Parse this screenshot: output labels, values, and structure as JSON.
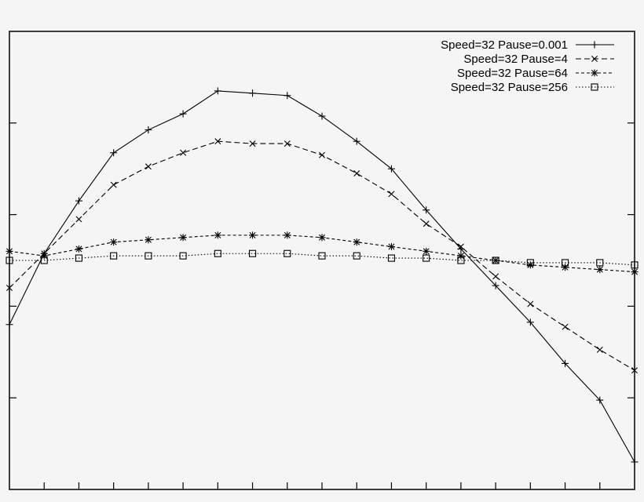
{
  "chart_data": {
    "type": "line",
    "title": "",
    "xlabel": "",
    "ylabel": "",
    "xlim": [
      0,
      18
    ],
    "ylim": [
      -1.0,
      1.0
    ],
    "grid": false,
    "legend_position": "top-right",
    "x": [
      0,
      1,
      2,
      3,
      4,
      5,
      6,
      7,
      8,
      9,
      10,
      11,
      12,
      13,
      14,
      15,
      16,
      17,
      18
    ],
    "series": [
      {
        "name": "Speed=32  Pause=0.001",
        "line_style": "solid",
        "marker": "plus",
        "values": [
          -0.28,
          0.03,
          0.26,
          0.47,
          0.57,
          0.64,
          0.74,
          0.73,
          0.72,
          0.63,
          0.52,
          0.4,
          0.22,
          0.05,
          -0.11,
          -0.27,
          -0.45,
          -0.61,
          -0.88
        ]
      },
      {
        "name": "Speed=32  Pause=4",
        "line_style": "dashed",
        "marker": "x",
        "values": [
          -0.12,
          0.03,
          0.18,
          0.33,
          0.41,
          0.47,
          0.52,
          0.51,
          0.51,
          0.46,
          0.38,
          0.29,
          0.16,
          0.06,
          -0.07,
          -0.19,
          -0.29,
          -0.39,
          -0.48
        ]
      },
      {
        "name": "Speed=32  Pause=64",
        "line_style": "short-dashed",
        "marker": "asterisk",
        "values": [
          0.04,
          0.02,
          0.05,
          0.08,
          0.09,
          0.1,
          0.11,
          0.11,
          0.11,
          0.1,
          0.08,
          0.06,
          0.04,
          0.02,
          0.0,
          -0.02,
          -0.03,
          -0.04,
          -0.05
        ]
      },
      {
        "name": "Speed=32  Pause=256",
        "line_style": "dotted",
        "marker": "square",
        "values": [
          0.0,
          0.0,
          0.01,
          0.02,
          0.02,
          0.02,
          0.03,
          0.03,
          0.03,
          0.02,
          0.02,
          0.01,
          0.01,
          0.0,
          0.0,
          -0.01,
          -0.01,
          -0.01,
          -0.02
        ]
      }
    ]
  }
}
